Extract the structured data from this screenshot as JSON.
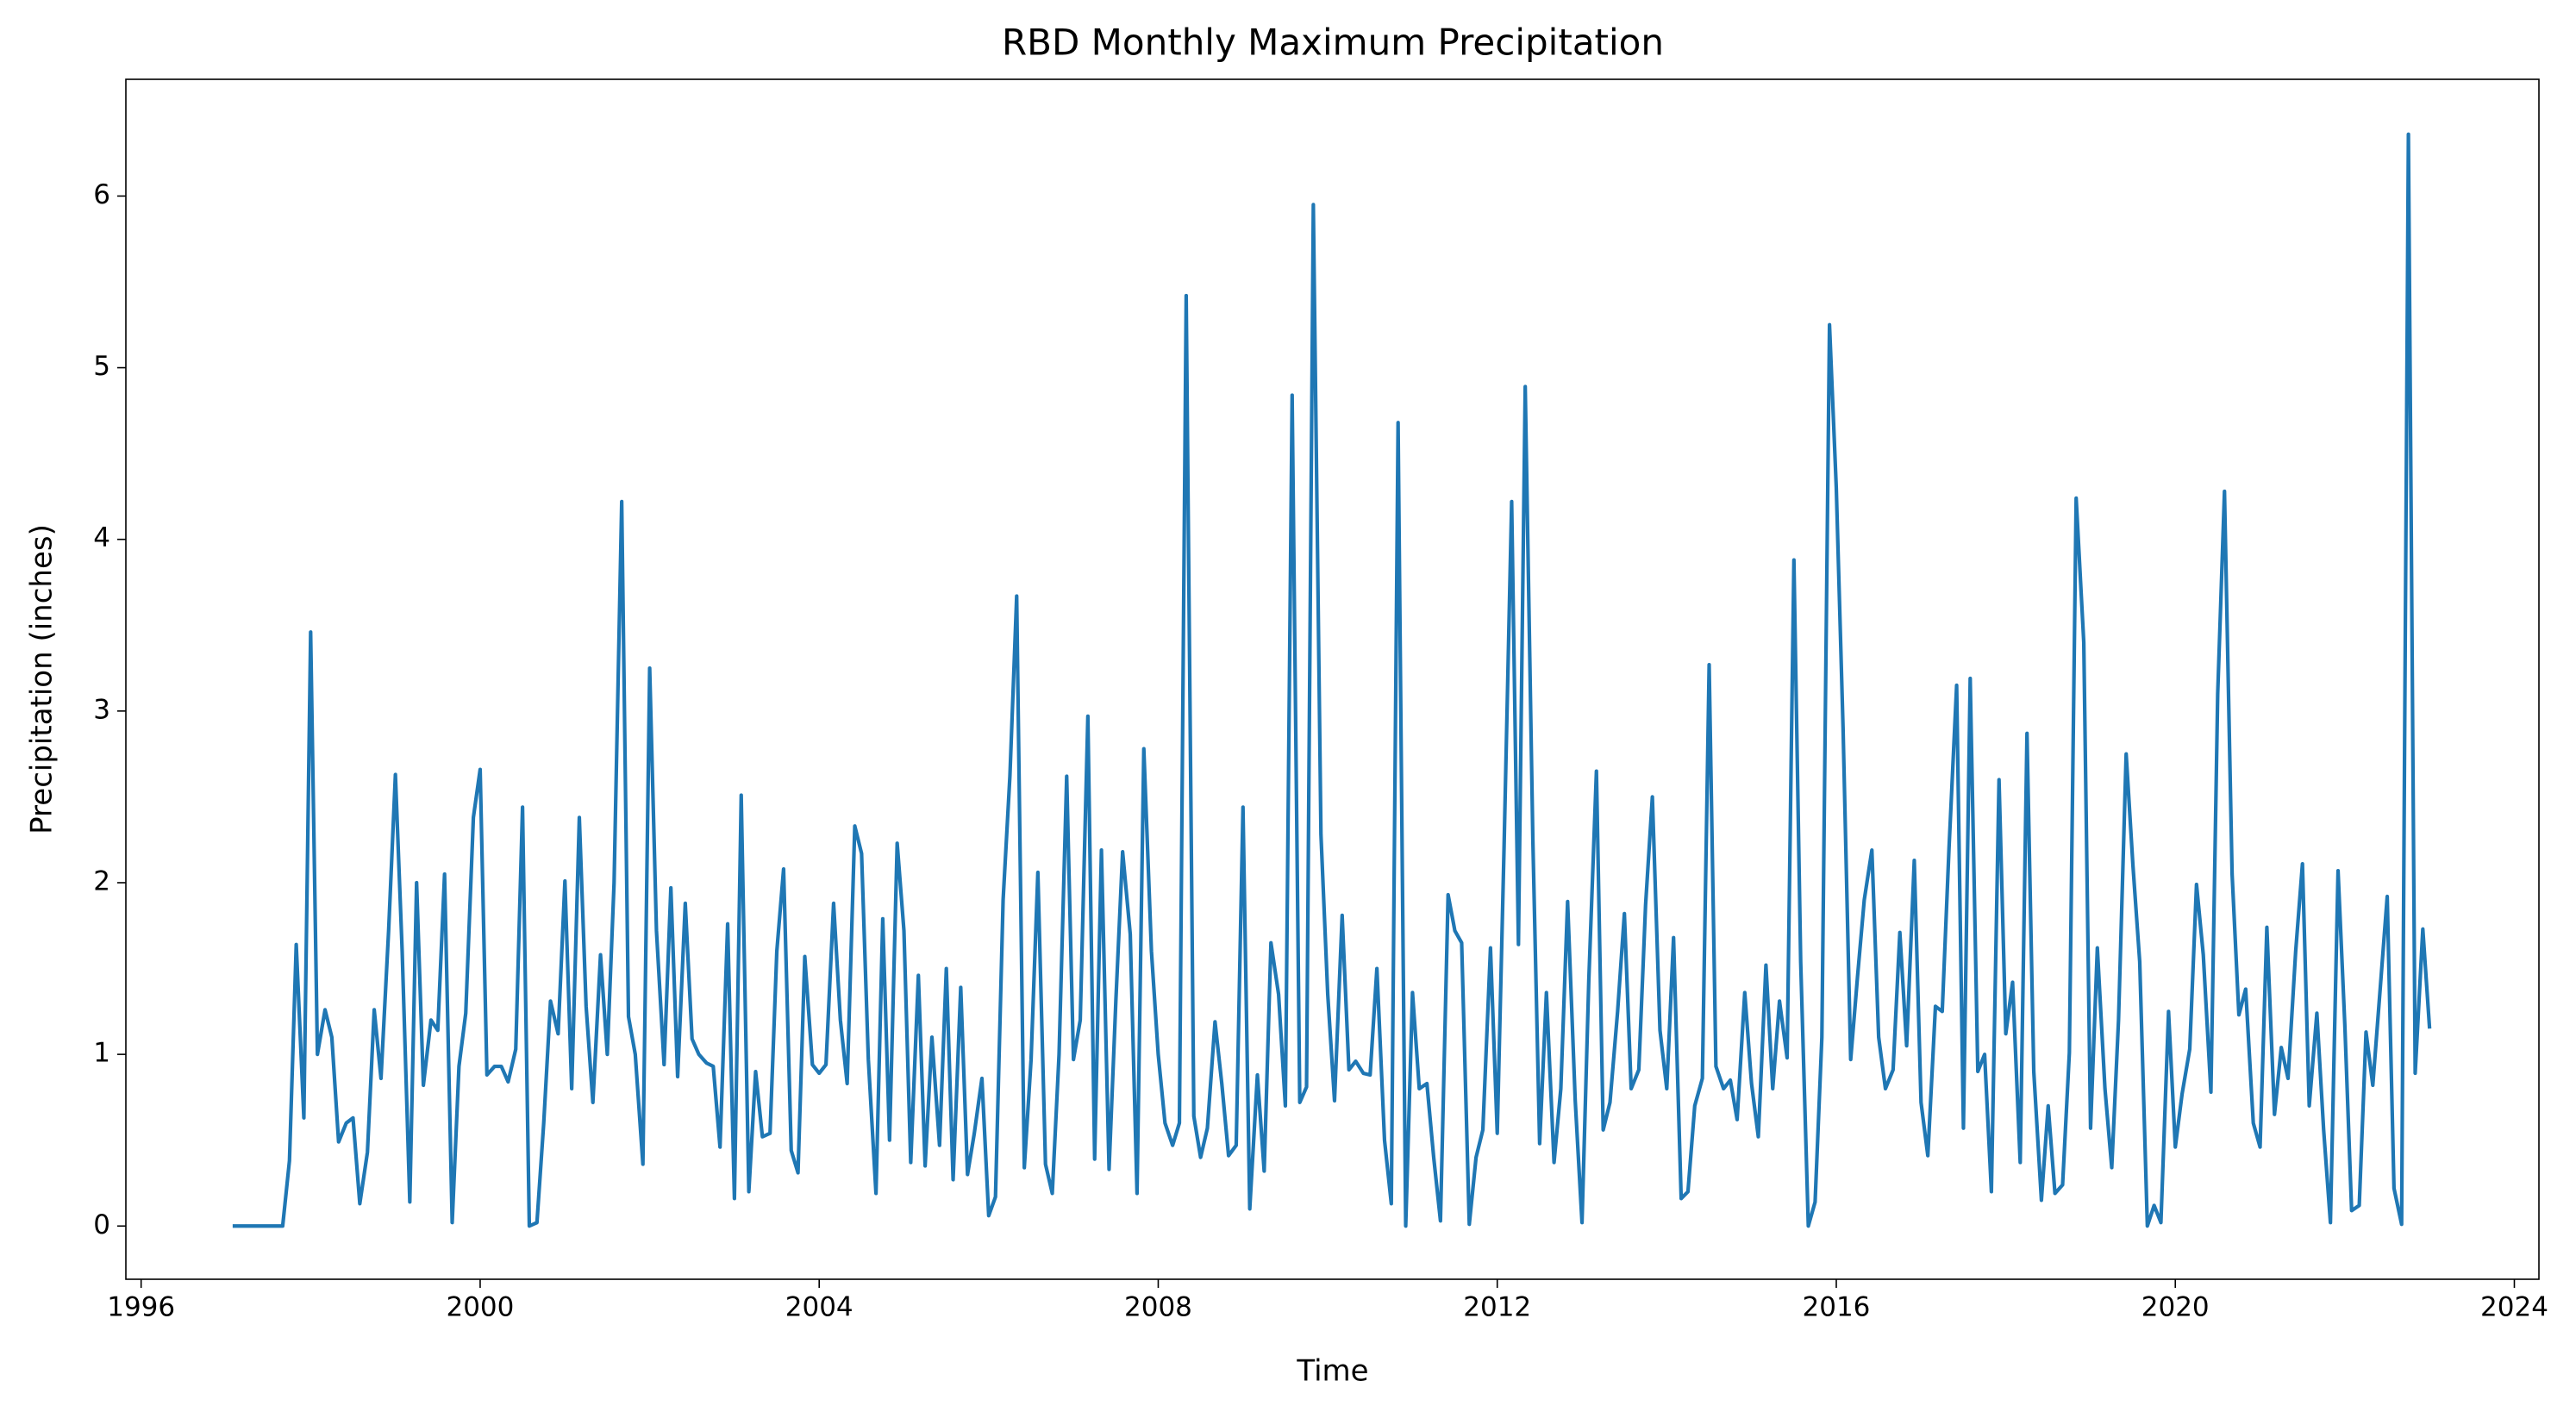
{
  "chart_data": {
    "type": "line",
    "title": "RBD Monthly Maximum Precipitation",
    "x_label": "Time",
    "y_label": "Precipitation (inches)",
    "color": "#1f77b4",
    "xlim": [
      1995.82,
      2024.29
    ],
    "ylim": [
      -0.31,
      6.68
    ],
    "xticks": [
      1996,
      2000,
      2004,
      2008,
      2012,
      2016,
      2020,
      2024
    ],
    "yticks": [
      0,
      1,
      2,
      3,
      4,
      5,
      6
    ],
    "x": [
      1997.08,
      1997.17,
      1997.25,
      1997.33,
      1997.42,
      1997.5,
      1997.58,
      1997.67,
      1997.75,
      1997.83,
      1997.92,
      1998,
      1998.08,
      1998.17,
      1998.25,
      1998.33,
      1998.42,
      1998.5,
      1998.58,
      1998.67,
      1998.75,
      1998.83,
      1998.92,
      1999,
      1999.08,
      1999.17,
      1999.25,
      1999.33,
      1999.42,
      1999.5,
      1999.58,
      1999.67,
      1999.75,
      1999.83,
      1999.92,
      2000,
      2000.08,
      2000.17,
      2000.25,
      2000.33,
      2000.42,
      2000.5,
      2000.58,
      2000.67,
      2000.75,
      2000.83,
      2000.92,
      2001,
      2001.08,
      2001.17,
      2001.25,
      2001.33,
      2001.42,
      2001.5,
      2001.58,
      2001.67,
      2001.75,
      2001.83,
      2001.92,
      2002,
      2002.08,
      2002.17,
      2002.25,
      2002.33,
      2002.42,
      2002.5,
      2002.58,
      2002.67,
      2002.75,
      2002.83,
      2002.92,
      2003,
      2003.08,
      2003.17,
      2003.25,
      2003.33,
      2003.42,
      2003.5,
      2003.58,
      2003.67,
      2003.75,
      2003.83,
      2003.92,
      2004,
      2004.08,
      2004.17,
      2004.25,
      2004.33,
      2004.42,
      2004.5,
      2004.58,
      2004.67,
      2004.75,
      2004.83,
      2004.92,
      2005,
      2005.08,
      2005.17,
      2005.25,
      2005.33,
      2005.42,
      2005.5,
      2005.58,
      2005.67,
      2005.75,
      2005.83,
      2005.92,
      2006,
      2006.08,
      2006.17,
      2006.25,
      2006.33,
      2006.42,
      2006.5,
      2006.58,
      2006.67,
      2006.75,
      2006.83,
      2006.92,
      2007,
      2007.08,
      2007.17,
      2007.25,
      2007.33,
      2007.42,
      2007.5,
      2007.58,
      2007.67,
      2007.75,
      2007.83,
      2007.92,
      2008,
      2008.08,
      2008.17,
      2008.25,
      2008.33,
      2008.42,
      2008.5,
      2008.58,
      2008.67,
      2008.75,
      2008.83,
      2008.92,
      2009,
      2009.08,
      2009.17,
      2009.25,
      2009.33,
      2009.42,
      2009.5,
      2009.58,
      2009.67,
      2009.75,
      2009.83,
      2009.92,
      2010,
      2010.08,
      2010.17,
      2010.25,
      2010.33,
      2010.42,
      2010.5,
      2010.58,
      2010.67,
      2010.75,
      2010.83,
      2010.92,
      2011,
      2011.08,
      2011.17,
      2011.25,
      2011.33,
      2011.42,
      2011.5,
      2011.58,
      2011.67,
      2011.75,
      2011.83,
      2011.92,
      2012,
      2012.08,
      2012.17,
      2012.25,
      2012.33,
      2012.42,
      2012.5,
      2012.58,
      2012.67,
      2012.75,
      2012.83,
      2012.92,
      2013,
      2013.08,
      2013.17,
      2013.25,
      2013.33,
      2013.42,
      2013.5,
      2013.58,
      2013.67,
      2013.75,
      2013.83,
      2013.92,
      2014,
      2014.08,
      2014.17,
      2014.25,
      2014.33,
      2014.42,
      2014.5,
      2014.58,
      2014.67,
      2014.75,
      2014.83,
      2014.92,
      2015,
      2015.08,
      2015.17,
      2015.25,
      2015.33,
      2015.42,
      2015.5,
      2015.58,
      2015.67,
      2015.75,
      2015.83,
      2015.92,
      2016,
      2016.08,
      2016.17,
      2016.25,
      2016.33,
      2016.42,
      2016.5,
      2016.58,
      2016.67,
      2016.75,
      2016.83,
      2016.92,
      2017,
      2017.08,
      2017.17,
      2017.25,
      2017.33,
      2017.42,
      2017.5,
      2017.58,
      2017.67,
      2017.75,
      2017.83,
      2017.92,
      2018,
      2018.08,
      2018.17,
      2018.25,
      2018.33,
      2018.42,
      2018.5,
      2018.58,
      2018.67,
      2018.75,
      2018.83,
      2018.92,
      2019,
      2019.08,
      2019.17,
      2019.25,
      2019.33,
      2019.42,
      2019.5,
      2019.58,
      2019.67,
      2019.75,
      2019.83,
      2019.92,
      2020,
      2020.08,
      2020.17,
      2020.25,
      2020.33,
      2020.42,
      2020.5,
      2020.58,
      2020.67,
      2020.75,
      2020.83,
      2020.92,
      2021,
      2021.08,
      2021.17,
      2021.25,
      2021.33,
      2021.42,
      2021.5,
      2021.58,
      2021.67,
      2021.75,
      2021.83,
      2021.92,
      2022,
      2022.08,
      2022.17,
      2022.25,
      2022.33,
      2022.42,
      2022.5,
      2022.58,
      2022.67,
      2022.75,
      2022.83,
      2022.92,
      2023
    ],
    "values": [
      0,
      0,
      0,
      0,
      0,
      0,
      0,
      0,
      0.38,
      1.64,
      0.63,
      3.46,
      1.0,
      1.26,
      1.1,
      0.49,
      0.6,
      0.63,
      0.13,
      0.43,
      1.26,
      0.86,
      1.72,
      2.63,
      1.6,
      0.14,
      2.0,
      0.82,
      1.2,
      1.14,
      2.05,
      0.02,
      0.93,
      1.24,
      2.38,
      2.66,
      0.88,
      0.93,
      0.93,
      0.84,
      1.03,
      2.44,
      0.0,
      0.02,
      0.6,
      1.31,
      1.12,
      2.01,
      0.8,
      2.38,
      1.28,
      0.72,
      1.58,
      1.0,
      2.0,
      4.22,
      1.22,
      1.0,
      0.36,
      3.25,
      1.72,
      0.94,
      1.97,
      0.87,
      1.88,
      1.09,
      1.0,
      0.95,
      0.93,
      0.46,
      1.76,
      0.16,
      2.51,
      0.2,
      0.9,
      0.52,
      0.54,
      1.6,
      2.08,
      0.44,
      0.31,
      1.57,
      0.94,
      0.89,
      0.94,
      1.88,
      1.2,
      0.83,
      2.33,
      2.17,
      0.97,
      0.19,
      1.79,
      0.5,
      2.23,
      1.72,
      0.37,
      1.46,
      0.35,
      1.1,
      0.47,
      1.5,
      0.27,
      1.39,
      0.3,
      0.54,
      0.86,
      0.06,
      0.17,
      1.9,
      2.62,
      3.67,
      0.34,
      0.97,
      2.06,
      0.36,
      0.19,
      1.0,
      2.62,
      0.97,
      1.2,
      2.97,
      0.39,
      2.19,
      0.33,
      1.31,
      2.18,
      1.7,
      0.19,
      2.78,
      1.6,
      1.0,
      0.6,
      0.47,
      0.6,
      5.42,
      0.64,
      0.4,
      0.57,
      1.19,
      0.83,
      0.41,
      0.47,
      2.44,
      0.1,
      0.88,
      0.32,
      1.65,
      1.35,
      0.7,
      4.84,
      0.72,
      0.81,
      5.95,
      2.28,
      1.35,
      0.73,
      1.81,
      0.91,
      0.96,
      0.89,
      0.88,
      1.5,
      0.5,
      0.13,
      4.68,
      0.0,
      1.36,
      0.8,
      0.83,
      0.4,
      0.03,
      1.93,
      1.72,
      1.65,
      0.01,
      0.4,
      0.56,
      1.62,
      0.54,
      2.2,
      4.22,
      1.64,
      4.89,
      2.25,
      0.48,
      1.36,
      0.37,
      0.8,
      1.89,
      0.73,
      0.02,
      1.43,
      2.65,
      0.56,
      0.72,
      1.25,
      1.82,
      0.8,
      0.91,
      1.87,
      2.5,
      1.14,
      0.8,
      1.68,
      0.16,
      0.2,
      0.7,
      0.86,
      3.27,
      0.93,
      0.8,
      0.85,
      0.62,
      1.36,
      0.83,
      0.52,
      1.52,
      0.8,
      1.31,
      0.98,
      3.88,
      1.54,
      0.0,
      0.14,
      1.1,
      5.25,
      4.3,
      2.9,
      0.97,
      1.45,
      1.9,
      2.19,
      1.1,
      0.8,
      0.91,
      1.71,
      1.05,
      2.13,
      0.72,
      0.41,
      1.28,
      1.25,
      2.2,
      3.15,
      0.57,
      3.19,
      0.9,
      1.0,
      0.2,
      2.6,
      1.12,
      1.42,
      0.37,
      2.87,
      0.9,
      0.15,
      0.7,
      0.19,
      0.24,
      1.01,
      4.24,
      3.4,
      0.57,
      1.62,
      0.8,
      0.34,
      1.2,
      2.75,
      2.1,
      1.54,
      0.0,
      0.12,
      0.02,
      1.25,
      0.46,
      0.77,
      1.03,
      1.99,
      1.58,
      0.78,
      3.1,
      4.28,
      2.05,
      1.23,
      1.38,
      0.6,
      0.46,
      1.74,
      0.65,
      1.04,
      0.86,
      1.6,
      2.11,
      0.7,
      1.24,
      0.56,
      0.02,
      2.07,
      1.17,
      0.09,
      0.12,
      1.13,
      0.82,
      1.4,
      1.92,
      0.22,
      0.01,
      6.36,
      0.89,
      1.73,
      1.15
    ]
  }
}
